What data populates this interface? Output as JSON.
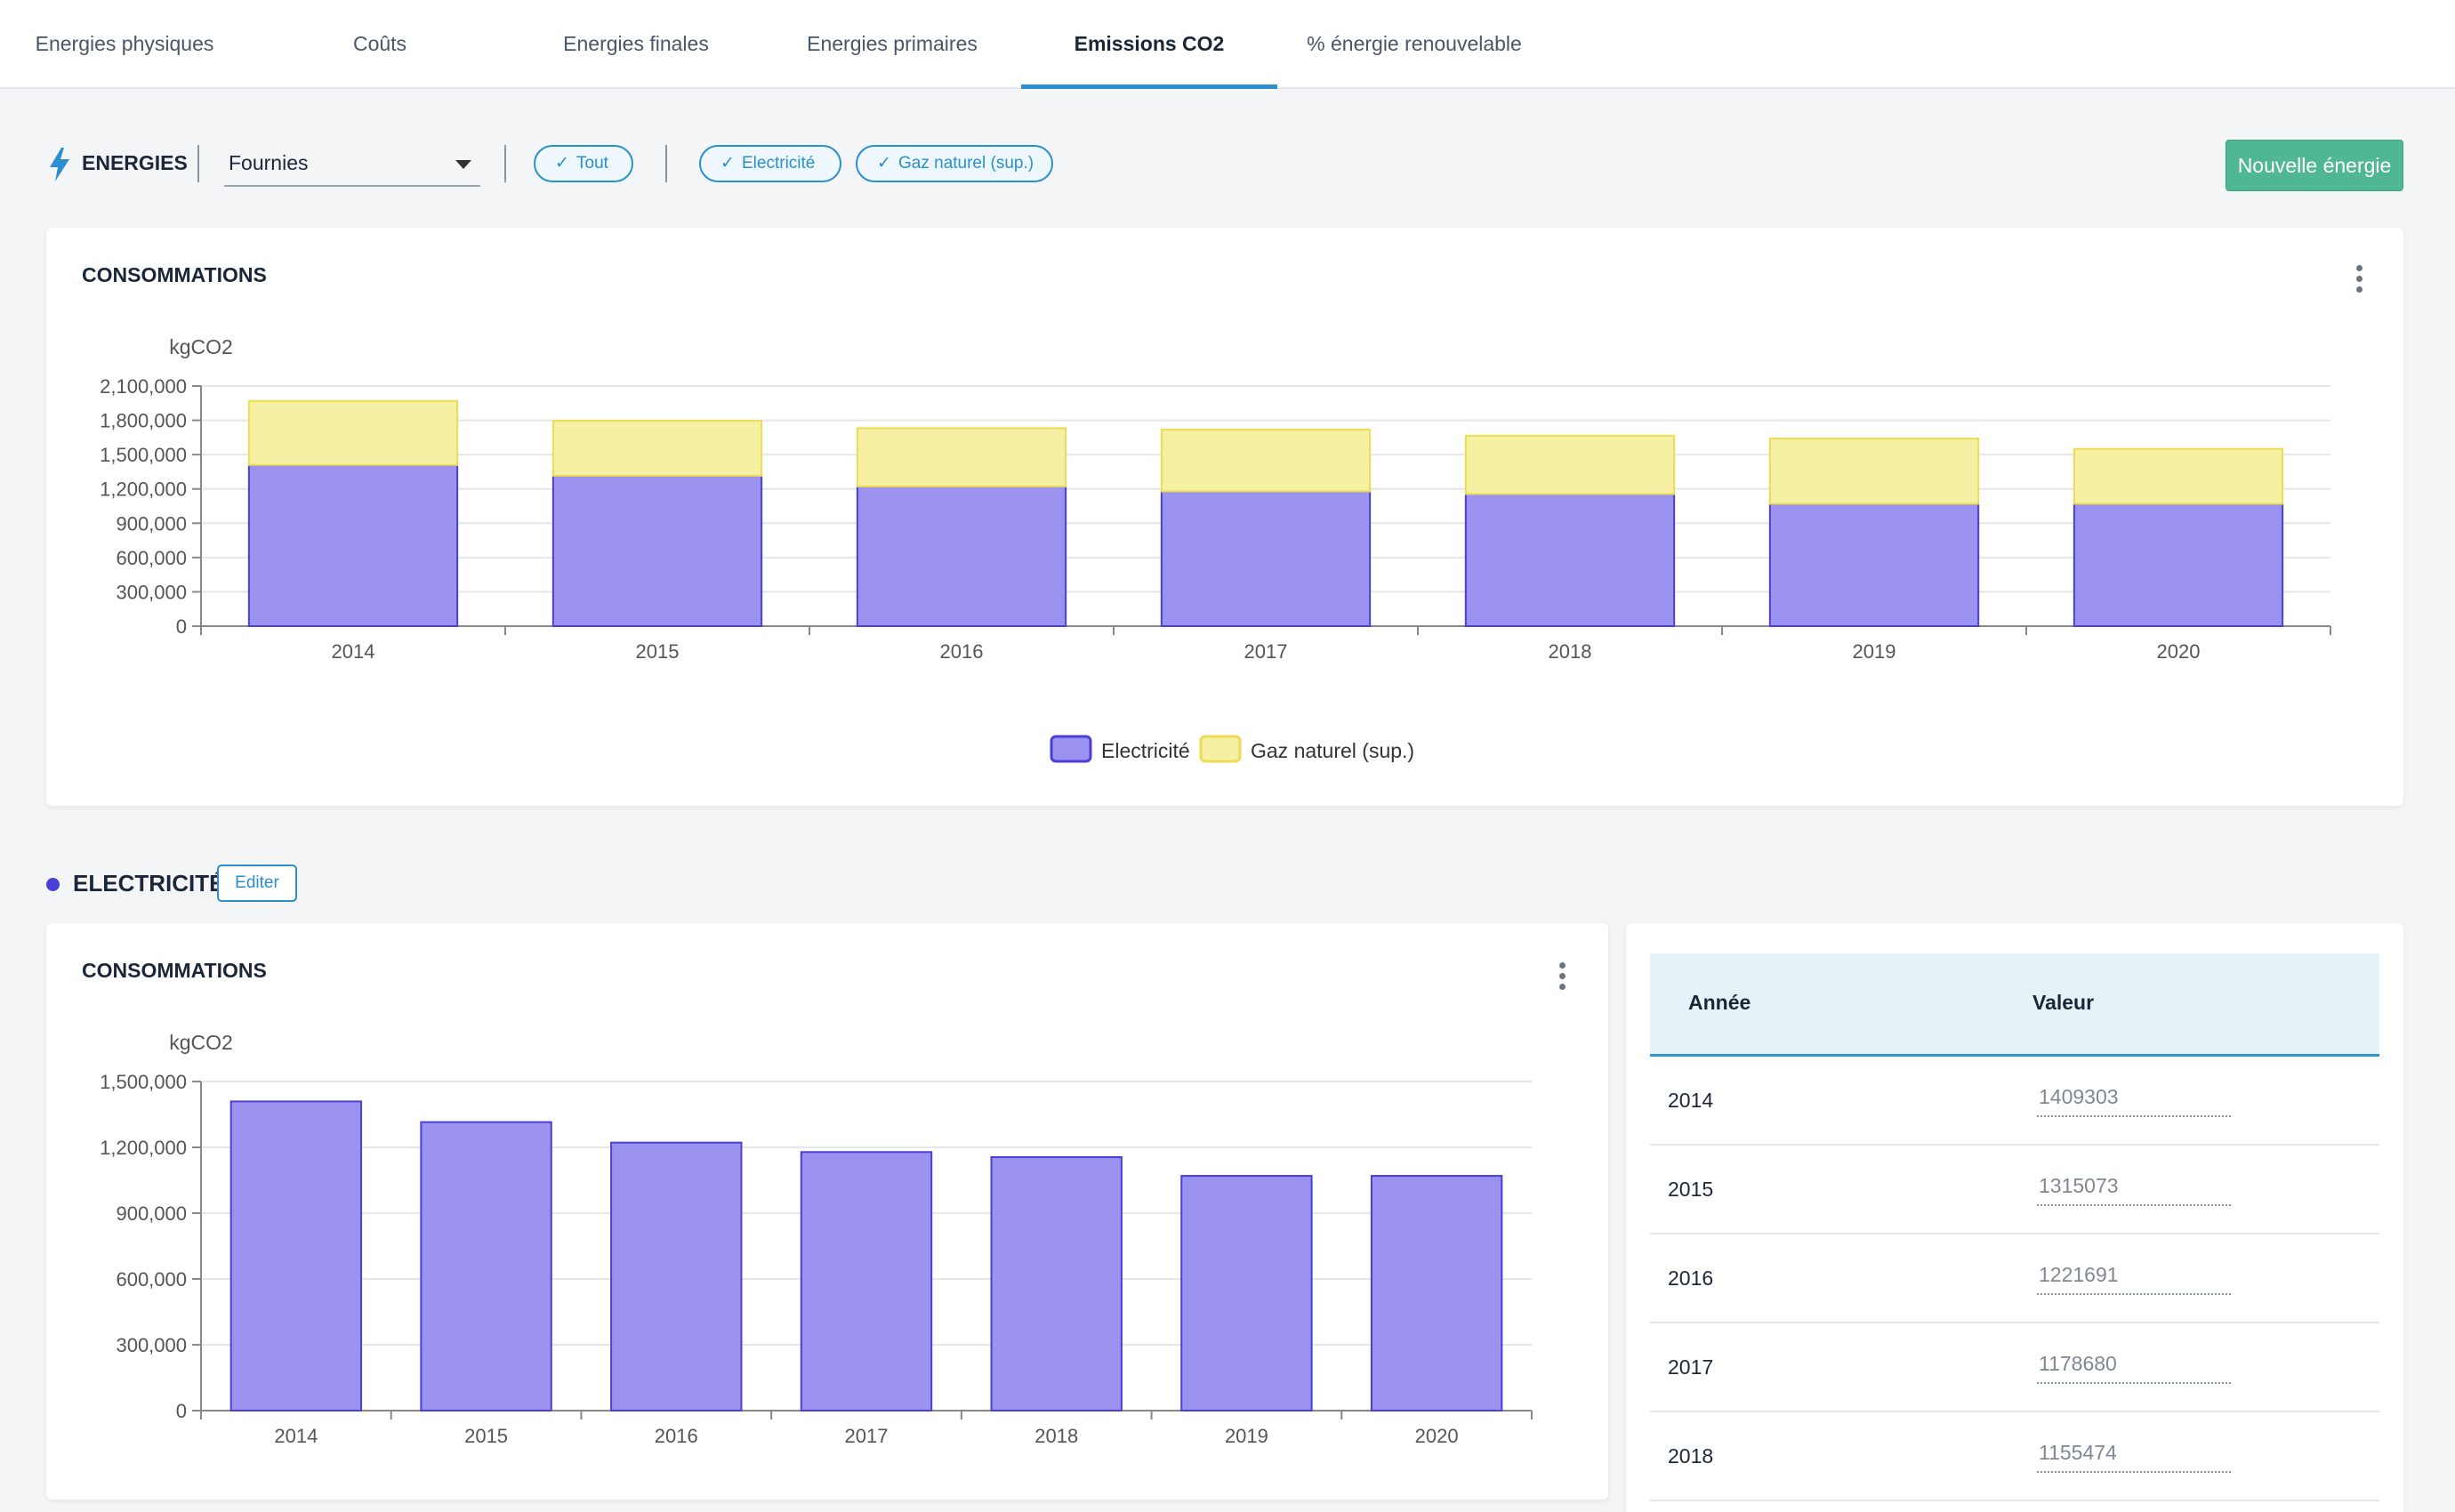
{
  "tabs": [
    {
      "label": "Energies physiques",
      "active": false
    },
    {
      "label": "Coûts",
      "active": false
    },
    {
      "label": "Energies finales",
      "active": false
    },
    {
      "label": "Energies primaires",
      "active": false
    },
    {
      "label": "Emissions CO2",
      "active": true
    },
    {
      "label": "% énergie renouvelable",
      "active": false
    }
  ],
  "toolbar": {
    "energies_label": "ENERGIES",
    "select_value": "Fournies",
    "chips": [
      "Tout",
      "Electricité",
      "Gaz naturel (sup.)"
    ],
    "new_button": "Nouvelle énergie"
  },
  "colors": {
    "electricite_fill": "#9a92ee",
    "electricite_stroke": "#4b3fd9",
    "gaz_fill": "#f6f0a2",
    "gaz_stroke": "#ebdb55",
    "accent": "#2a8fca",
    "green": "#4fb893"
  },
  "main_card": {
    "title": "CONSOMMATIONS",
    "chart_data": {
      "type": "bar",
      "stacked": true,
      "ylabel": "kgCO2",
      "categories": [
        "2014",
        "2015",
        "2016",
        "2017",
        "2018",
        "2019",
        "2020"
      ],
      "yticks": [
        "0",
        "300,000",
        "600,000",
        "900,000",
        "1,200,000",
        "1,500,000",
        "1,800,000",
        "2,100,000"
      ],
      "ylim": [
        0,
        2100000
      ],
      "series": [
        {
          "name": "Electricité",
          "values": [
            1409303,
            1315073,
            1221691,
            1178680,
            1155474,
            1070000,
            1070000
          ]
        },
        {
          "name": "Gaz naturel (sup.)",
          "values": [
            560000,
            480000,
            510000,
            540000,
            510000,
            570000,
            480000
          ]
        }
      ],
      "legend": "bottom-center",
      "grid": true
    }
  },
  "section": {
    "title": "ELECTRICITÉ",
    "edit_button": "Editer"
  },
  "elec_card": {
    "title": "CONSOMMATIONS",
    "chart_data": {
      "type": "bar",
      "ylabel": "kgCO2",
      "categories": [
        "2014",
        "2015",
        "2016",
        "2017",
        "2018",
        "2019",
        "2020"
      ],
      "yticks": [
        "0",
        "300,000",
        "600,000",
        "900,000",
        "1,200,000",
        "1,500,000"
      ],
      "ylim": [
        0,
        1500000
      ],
      "series": [
        {
          "values": [
            1409303,
            1315073,
            1221691,
            1178680,
            1155474,
            1070000,
            1070000
          ]
        }
      ],
      "grid": true
    }
  },
  "table": {
    "headers": {
      "year": "Année",
      "value": "Valeur"
    },
    "rows": [
      {
        "year": "2014",
        "value": "1409303"
      },
      {
        "year": "2015",
        "value": "1315073"
      },
      {
        "year": "2016",
        "value": "1221691"
      },
      {
        "year": "2017",
        "value": "1178680"
      },
      {
        "year": "2018",
        "value": "1155474"
      }
    ]
  }
}
